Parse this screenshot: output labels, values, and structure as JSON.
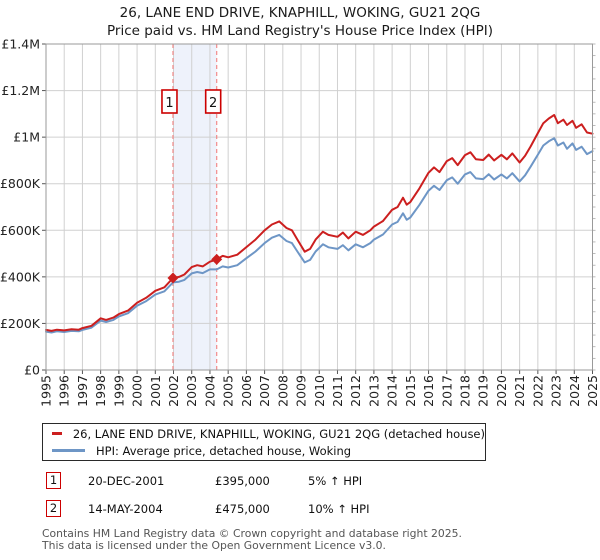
{
  "title": {
    "line1": "26, LANE END DRIVE, KNAPHILL, WOKING, GU21 2QG",
    "line2": "Price paid vs. HM Land Registry's House Price Index (HPI)"
  },
  "sales": [
    {
      "num": "1",
      "date": "20-DEC-2001",
      "price": "£395,000",
      "hpi": "5% ↑ HPI"
    },
    {
      "num": "2",
      "date": "14-MAY-2004",
      "price": "£475,000",
      "hpi": "10% ↑ HPI"
    }
  ],
  "footer": {
    "line1": "Contains HM Land Registry data © Crown copyright and database right 2025.",
    "line2": "This data is licensed under the Open Government Licence v3.0."
  },
  "chart_data": {
    "type": "line",
    "title": "26, LANE END DRIVE, KNAPHILL, WOKING, GU21 2QG — Price paid vs. HPI",
    "x_range": [
      1995,
      2025
    ],
    "y_range_k": [
      0,
      1400
    ],
    "y_ticks": [
      "£0",
      "£200K",
      "£400K",
      "£600K",
      "£800K",
      "£1M",
      "£1.2M",
      "£1.4M"
    ],
    "x_ticks": [
      1995,
      1996,
      1997,
      1998,
      1999,
      2000,
      2001,
      2002,
      2003,
      2004,
      2005,
      2006,
      2007,
      2008,
      2009,
      2010,
      2011,
      2012,
      2013,
      2014,
      2015,
      2016,
      2017,
      2018,
      2019,
      2020,
      2021,
      2022,
      2023,
      2024,
      2025
    ],
    "grid": true,
    "legend_position": "bottom",
    "colors": {
      "grid": "#d0d0d0",
      "border": "#9a9a9a",
      "band": "#eef2fb",
      "dashed": "#f28b8b",
      "tick": "#555555",
      "minor_tick": "#aaaaaa",
      "axis_text": "#222222",
      "marker_box_border": "#cc0000"
    },
    "band_years": [
      2001.97,
      2004.37
    ],
    "markers": [
      {
        "label": "1",
        "year": 2001.97,
        "value_k": 395
      },
      {
        "label": "2",
        "year": 2004.37,
        "value_k": 475
      }
    ],
    "series": [
      {
        "name": "26, LANE END DRIVE, KNAPHILL, WOKING, GU21 2QG (detached house)",
        "color": "#cc1f1f",
        "x": [
          1995.0,
          1995.3,
          1995.6,
          1996.0,
          1996.4,
          1996.8,
          1997.0,
          1997.5,
          1998.0,
          1998.3,
          1998.7,
          1999.0,
          1999.5,
          2000.0,
          2000.5,
          2001.0,
          2001.5,
          2001.97,
          2002.3,
          2002.6,
          2003.0,
          2003.3,
          2003.6,
          2004.0,
          2004.37,
          2004.7,
          2005.0,
          2005.5,
          2006.0,
          2006.5,
          2007.0,
          2007.4,
          2007.8,
          2008.2,
          2008.5,
          2008.8,
          2009.2,
          2009.5,
          2009.8,
          2010.2,
          2010.5,
          2011.0,
          2011.3,
          2011.6,
          2012.0,
          2012.4,
          2012.8,
          2013.0,
          2013.5,
          2014.0,
          2014.3,
          2014.6,
          2014.8,
          2015.0,
          2015.5,
          2016.0,
          2016.3,
          2016.6,
          2017.0,
          2017.3,
          2017.6,
          2018.0,
          2018.3,
          2018.6,
          2019.0,
          2019.3,
          2019.6,
          2020.0,
          2020.3,
          2020.6,
          2021.0,
          2021.3,
          2021.6,
          2022.0,
          2022.3,
          2022.6,
          2022.9,
          2023.1,
          2023.4,
          2023.6,
          2023.9,
          2024.1,
          2024.4,
          2024.7,
          2025.0
        ],
        "values_k": [
          172,
          168,
          173,
          170,
          175,
          173,
          180,
          190,
          222,
          215,
          225,
          240,
          255,
          289,
          310,
          340,
          355,
          395,
          400,
          410,
          442,
          450,
          445,
          465,
          475,
          490,
          484,
          495,
          528,
          560,
          600,
          625,
          638,
          610,
          600,
          560,
          508,
          520,
          560,
          594,
          580,
          572,
          590,
          565,
          594,
          580,
          600,
          616,
          640,
          688,
          700,
          740,
          710,
          721,
          780,
          847,
          870,
          850,
          897,
          910,
          880,
          923,
          935,
          905,
          902,
          925,
          900,
          924,
          905,
          930,
          891,
          920,
          960,
          1018,
          1060,
          1080,
          1095,
          1060,
          1075,
          1052,
          1070,
          1040,
          1055,
          1020,
          1015
        ]
      },
      {
        "name": "HPI: Average price, detached house, Woking",
        "color": "#6e96c6",
        "x": [
          1995.0,
          1995.3,
          1995.6,
          1996.0,
          1996.4,
          1996.8,
          1997.0,
          1997.5,
          1998.0,
          1998.3,
          1998.7,
          1999.0,
          1999.5,
          2000.0,
          2000.5,
          2001.0,
          2001.5,
          2001.97,
          2002.3,
          2002.6,
          2003.0,
          2003.3,
          2003.6,
          2004.0,
          2004.37,
          2004.7,
          2005.0,
          2005.5,
          2006.0,
          2006.5,
          2007.0,
          2007.4,
          2007.8,
          2008.2,
          2008.5,
          2008.8,
          2009.2,
          2009.5,
          2009.8,
          2010.2,
          2010.5,
          2011.0,
          2011.3,
          2011.6,
          2012.0,
          2012.4,
          2012.8,
          2013.0,
          2013.5,
          2014.0,
          2014.3,
          2014.6,
          2014.8,
          2015.0,
          2015.5,
          2016.0,
          2016.3,
          2016.6,
          2017.0,
          2017.3,
          2017.6,
          2018.0,
          2018.3,
          2018.6,
          2019.0,
          2019.3,
          2019.6,
          2020.0,
          2020.3,
          2020.6,
          2021.0,
          2021.3,
          2021.6,
          2022.0,
          2022.3,
          2022.6,
          2022.9,
          2023.1,
          2023.4,
          2023.6,
          2023.9,
          2024.1,
          2024.4,
          2024.7,
          2025.0
        ],
        "values_k": [
          165,
          161,
          166,
          163,
          168,
          166,
          172,
          182,
          212,
          206,
          215,
          230,
          244,
          276,
          296,
          324,
          338,
          376,
          379,
          387,
          415,
          421,
          416,
          432,
          432,
          445,
          440,
          450,
          480,
          509,
          545,
          568,
          580,
          554,
          545,
          509,
          462,
          473,
          509,
          540,
          527,
          520,
          536,
          514,
          540,
          527,
          545,
          560,
          582,
          625,
          636,
          673,
          645,
          655,
          709,
          770,
          791,
          773,
          815,
          827,
          800,
          840,
          850,
          823,
          820,
          841,
          818,
          840,
          823,
          845,
          810,
          836,
          873,
          925,
          964,
          982,
          995,
          964,
          977,
          950,
          973,
          945,
          959,
          927,
          940
        ]
      }
    ]
  }
}
